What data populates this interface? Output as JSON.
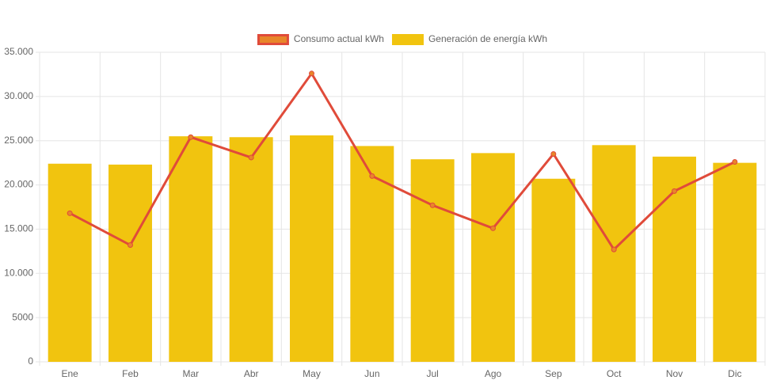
{
  "chart_data": {
    "type": "combo",
    "categories": [
      "Ene",
      "Feb",
      "Mar",
      "Abr",
      "May",
      "Jun",
      "Jul",
      "Ago",
      "Sep",
      "Oct",
      "Nov",
      "Dic"
    ],
    "series": [
      {
        "name": "Consumo actual kWh",
        "type": "line",
        "color": "#e04b3a",
        "point_color": "#e8862a",
        "values": [
          16800,
          13200,
          25400,
          23100,
          32600,
          21000,
          17700,
          15100,
          23500,
          12700,
          19300,
          22600
        ]
      },
      {
        "name": "Generación de energía kWh",
        "type": "bar",
        "color": "#f1c40f",
        "values": [
          22400,
          22300,
          25500,
          25400,
          25600,
          24400,
          22900,
          23600,
          20700,
          24500,
          23200,
          22500
        ]
      }
    ],
    "ylim": [
      0,
      35000
    ],
    "yticks": [
      0,
      5000,
      {
        "value": 10000,
        "label": "10.000"
      },
      {
        "value": 15000,
        "label": "15.000"
      },
      {
        "value": 20000,
        "label": "20.000"
      },
      {
        "value": 25000,
        "label": "25.000"
      },
      {
        "value": 30000,
        "label": "30.000"
      },
      {
        "value": 35000,
        "label": "35.000"
      }
    ],
    "grid": true,
    "legend": "top"
  }
}
